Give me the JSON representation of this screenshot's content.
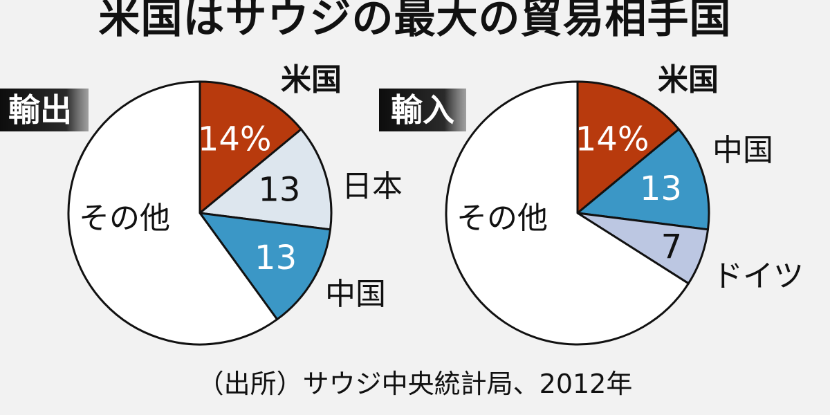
{
  "title": "米国はサウジの最大の貿易相手国",
  "source": "（出所）サウジ中央統計局、2012年",
  "chart_data": [
    {
      "type": "pie",
      "tag": "輸出",
      "slices": [
        {
          "label": "米国",
          "value": 14,
          "value_label": "14%",
          "color": "#b83a0d"
        },
        {
          "label": "日本",
          "value": 13,
          "value_label": "13",
          "color": "#dde6ee"
        },
        {
          "label": "中国",
          "value": 13,
          "value_label": "13",
          "color": "#3b97c6"
        },
        {
          "label": "その他",
          "value": 60,
          "value_label": "",
          "color": "#ffffff"
        }
      ]
    },
    {
      "type": "pie",
      "tag": "輸入",
      "slices": [
        {
          "label": "米国",
          "value": 14,
          "value_label": "14%",
          "color": "#b83a0d"
        },
        {
          "label": "中国",
          "value": 13,
          "value_label": "13",
          "color": "#3b97c6"
        },
        {
          "label": "ドイツ",
          "value": 7,
          "value_label": "7",
          "color": "#bcc7e2"
        },
        {
          "label": "その他",
          "value": 66,
          "value_label": "",
          "color": "#ffffff"
        }
      ]
    }
  ]
}
